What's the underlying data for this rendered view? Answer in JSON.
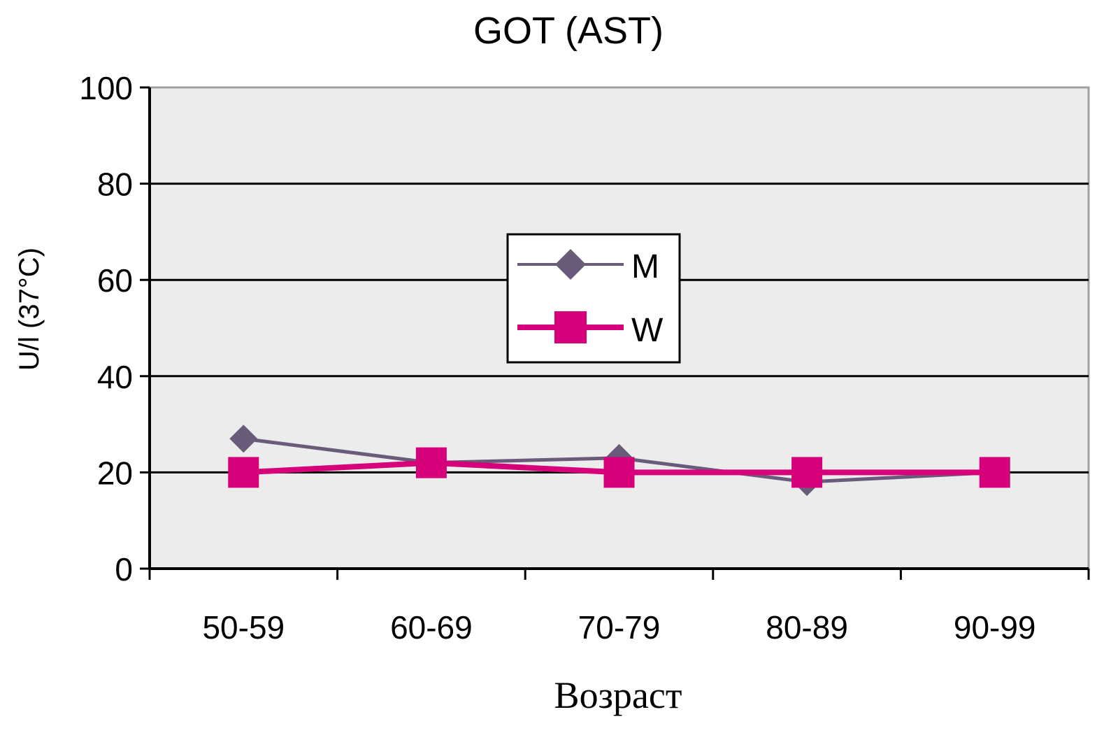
{
  "chart_data": {
    "type": "line",
    "title": "GOT (AST)",
    "xlabel": "Возраст",
    "ylabel": "U/l (37°C)",
    "categories": [
      "50-59",
      "60-69",
      "70-79",
      "80-89",
      "90-99"
    ],
    "ylim": [
      0,
      100
    ],
    "yticks": [
      0,
      20,
      40,
      60,
      80,
      100
    ],
    "grid": true,
    "legend_position": "center",
    "series": [
      {
        "name": "M",
        "marker": "diamond",
        "color": "#6b5b7b",
        "values": [
          27,
          22,
          23,
          18,
          20
        ]
      },
      {
        "name": "W",
        "marker": "square",
        "color": "#d6007a",
        "values": [
          20,
          22,
          20,
          20,
          20
        ]
      }
    ],
    "plot_background": "#ececec"
  }
}
